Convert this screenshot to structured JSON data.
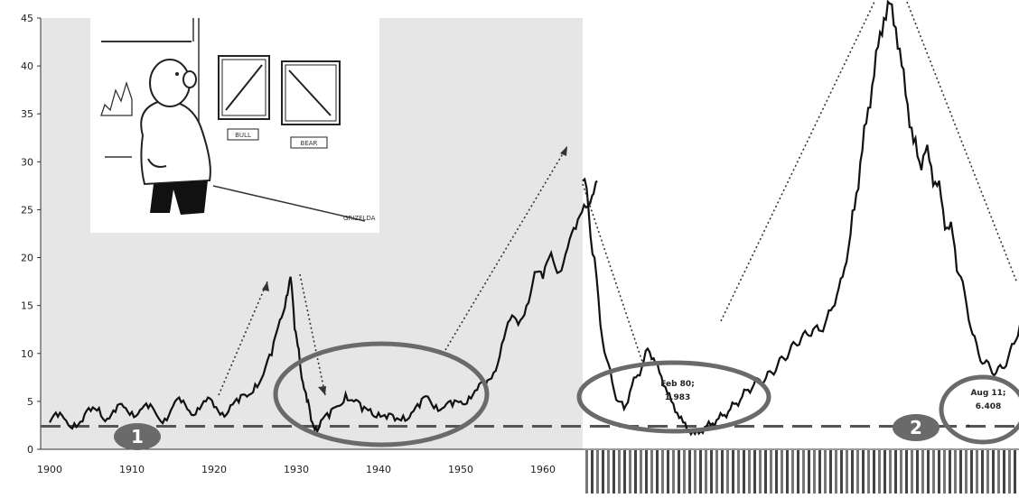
{
  "chart_data": {
    "type": "line",
    "title": "",
    "xlabel": "",
    "ylabel": "",
    "ylim": [
      0,
      45
    ],
    "grid": false,
    "legend": "none",
    "yticks": [
      "0",
      "5",
      "10",
      "15",
      "20",
      "25",
      "30",
      "35",
      "40",
      "45"
    ],
    "xticks_left": [
      "1900",
      "1910",
      "1920",
      "1930",
      "1940",
      "1950",
      "1960"
    ],
    "right_axis_note": "dense rotated month-year labels",
    "series": [
      {
        "values_left": [
          [
            1900,
            2.8
          ],
          [
            1901,
            3.4
          ],
          [
            1902,
            3.0
          ],
          [
            1903,
            2.7
          ],
          [
            1904,
            2.9
          ],
          [
            1905,
            4.0
          ],
          [
            1906,
            4.3
          ],
          [
            1907,
            3.2
          ],
          [
            1908,
            3.9
          ],
          [
            1909,
            4.4
          ],
          [
            1910,
            3.9
          ],
          [
            1911,
            4.1
          ],
          [
            1912,
            4.3
          ],
          [
            1913,
            3.6
          ],
          [
            1914,
            3.2
          ],
          [
            1915,
            4.5
          ],
          [
            1916,
            4.9
          ],
          [
            1917,
            4.0
          ],
          [
            1918,
            4.3
          ],
          [
            1919,
            5.0
          ],
          [
            1920,
            4.4
          ],
          [
            1921,
            3.8
          ],
          [
            1922,
            4.6
          ],
          [
            1923,
            4.9
          ],
          [
            1924,
            5.5
          ],
          [
            1925,
            6.8
          ],
          [
            1926,
            7.8
          ],
          [
            1927,
            9.8
          ],
          [
            1928,
            13.5
          ],
          [
            1928.8,
            16.0
          ],
          [
            1929.3,
            18.0
          ],
          [
            1929.8,
            12.5
          ],
          [
            1930.3,
            10.5
          ],
          [
            1930.8,
            7.0
          ],
          [
            1931.3,
            5.0
          ],
          [
            1931.8,
            3.0
          ],
          [
            1932.4,
            2.3
          ],
          [
            1933,
            3.0
          ],
          [
            1934,
            3.3
          ],
          [
            1935,
            4.5
          ],
          [
            1936,
            5.8
          ],
          [
            1937,
            5.0
          ],
          [
            1938,
            4.0
          ],
          [
            1939,
            4.2
          ],
          [
            1940,
            3.8
          ],
          [
            1941,
            3.2
          ],
          [
            1942,
            3.0
          ],
          [
            1943,
            3.5
          ],
          [
            1944,
            3.8
          ],
          [
            1945,
            4.4
          ],
          [
            1946,
            5.5
          ],
          [
            1947,
            4.6
          ],
          [
            1948,
            4.4
          ],
          [
            1949,
            4.5
          ],
          [
            1950,
            5.0
          ],
          [
            1951,
            5.5
          ],
          [
            1952,
            6.2
          ],
          [
            1953,
            6.6
          ],
          [
            1954,
            8.0
          ],
          [
            1955,
            11.0
          ],
          [
            1956,
            13.5
          ],
          [
            1957,
            13.0
          ],
          [
            1958,
            15.0
          ],
          [
            1959,
            18.5
          ],
          [
            1960,
            17.8
          ],
          [
            1961,
            20.5
          ],
          [
            1962,
            18.5
          ],
          [
            1963,
            21.0
          ],
          [
            1964,
            23.0
          ],
          [
            1965,
            25.5
          ],
          [
            1966,
            26.5
          ],
          [
            1966.6,
            28.0
          ]
        ],
        "values_right_index": [
          [
            0,
            28.0
          ],
          [
            3,
            25.0
          ],
          [
            6,
            20.0
          ],
          [
            9,
            13.0
          ],
          [
            12,
            9.5
          ],
          [
            15,
            7.0
          ],
          [
            18,
            5.0
          ],
          [
            21,
            4.2
          ],
          [
            24,
            6.0
          ],
          [
            27,
            7.5
          ],
          [
            30,
            8.5
          ],
          [
            33,
            10.5
          ],
          [
            36,
            9.5
          ],
          [
            39,
            8.0
          ],
          [
            42,
            6.5
          ],
          [
            45,
            5.0
          ],
          [
            48,
            3.8
          ],
          [
            51,
            2.8
          ],
          [
            54,
            2.0
          ],
          [
            57,
            1.6
          ],
          [
            60,
            1.9
          ],
          [
            63,
            2.4
          ],
          [
            66,
            2.7
          ],
          [
            69,
            3.2
          ],
          [
            72,
            3.6
          ],
          [
            75,
            4.2
          ],
          [
            78,
            4.8
          ],
          [
            81,
            5.5
          ],
          [
            84,
            6.2
          ],
          [
            87,
            6.8
          ],
          [
            90,
            7.2
          ],
          [
            93,
            7.4
          ],
          [
            96,
            8.0
          ],
          [
            99,
            8.8
          ],
          [
            102,
            9.5
          ],
          [
            105,
            10.2
          ],
          [
            108,
            11.0
          ],
          [
            111,
            11.6
          ],
          [
            114,
            12.0
          ],
          [
            117,
            12.5
          ],
          [
            120,
            12.4
          ],
          [
            123,
            13.0
          ],
          [
            126,
            14.5
          ],
          [
            129,
            16.0
          ],
          [
            132,
            18.0
          ],
          [
            135,
            21.0
          ],
          [
            138,
            25.0
          ],
          [
            141,
            30.0
          ],
          [
            144,
            34.0
          ],
          [
            147,
            38.0
          ],
          [
            150,
            42.0
          ],
          [
            153,
            45.0
          ],
          [
            156,
            46.5
          ],
          [
            159,
            44.0
          ],
          [
            162,
            40.0
          ],
          [
            165,
            36.0
          ],
          [
            168,
            32.0
          ],
          [
            171,
            30.0
          ],
          [
            174,
            31.0
          ],
          [
            177,
            29.5
          ],
          [
            180,
            27.5
          ],
          [
            183,
            25.0
          ],
          [
            186,
            23.0
          ],
          [
            189,
            21.0
          ],
          [
            192,
            18.0
          ],
          [
            195,
            15.0
          ],
          [
            198,
            12.0
          ],
          [
            201,
            10.0
          ],
          [
            204,
            9.0
          ],
          [
            207,
            8.5
          ],
          [
            210,
            8.0
          ],
          [
            213,
            8.5
          ],
          [
            216,
            9.5
          ],
          [
            219,
            11.0
          ],
          [
            222,
            13.0
          ],
          [
            225,
            14.5
          ]
        ]
      }
    ],
    "reference_line_y": 2.4,
    "markers": [
      "1",
      "2"
    ],
    "annotations": [
      {
        "lines": [
          "Feb 80;",
          "1,983"
        ]
      },
      {
        "lines": [
          "Aug 11;",
          "6.408"
        ]
      }
    ],
    "cartoon_labels": [
      "BULL",
      "BEAR"
    ],
    "cartoon_signature": "GRIZELDA"
  }
}
